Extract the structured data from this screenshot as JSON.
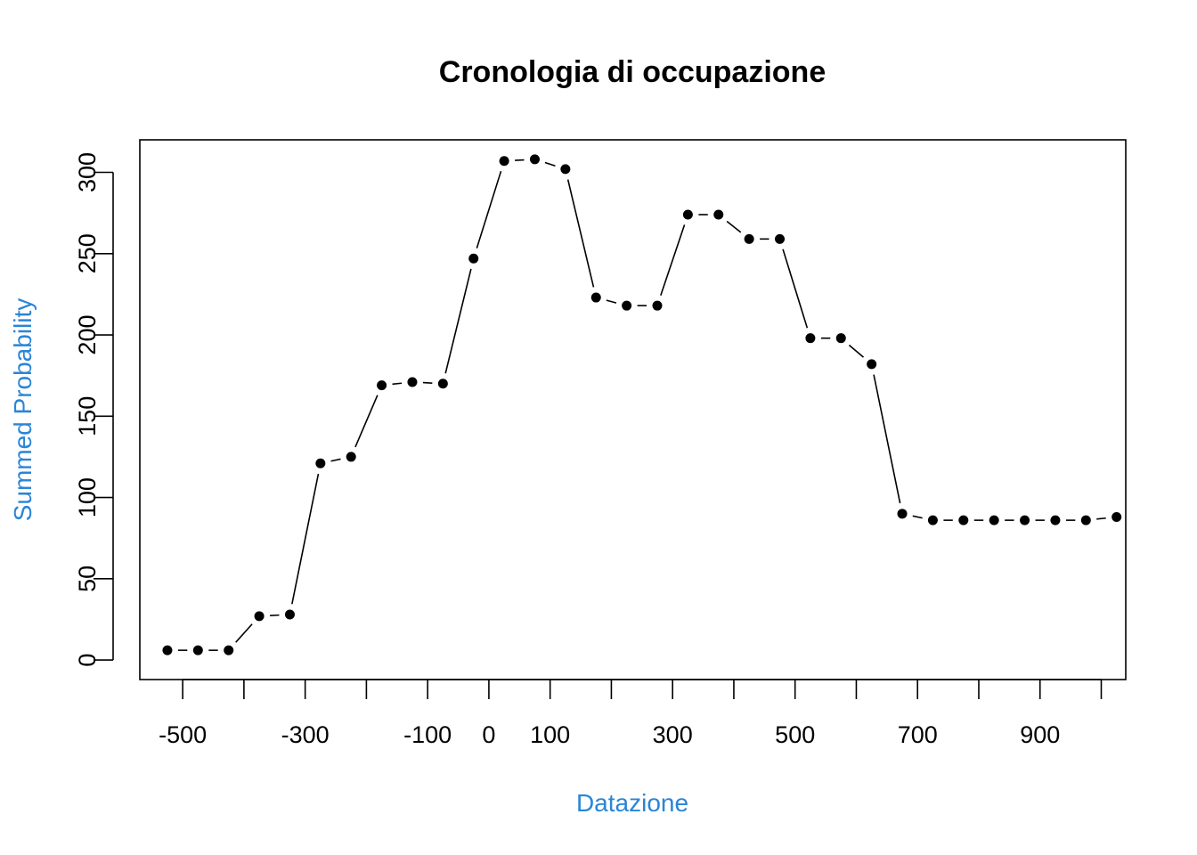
{
  "chart_data": {
    "type": "scatter",
    "title": "Cronologia di occupazione",
    "xlabel": "Datazione",
    "ylabel": "Summed Probability",
    "label_color": "#2a85d6",
    "x_tick_labels": [
      "-500",
      "-300",
      "-100",
      "0",
      "100",
      "300",
      "500",
      "700",
      "900"
    ],
    "x_tick_values": [
      -500,
      -300,
      -100,
      0,
      100,
      300,
      500,
      700,
      900
    ],
    "x_minor_ticks": [
      -400,
      -200,
      200,
      400,
      600,
      800,
      1000
    ],
    "y_ticks": [
      0,
      50,
      100,
      150,
      200,
      250,
      300
    ],
    "xlim": [
      -570,
      1040
    ],
    "ylim": [
      -12,
      320
    ],
    "grid": false,
    "series": [
      {
        "x": [
          -525,
          -475,
          -425,
          -375,
          -325,
          -275,
          -225,
          -175,
          -125,
          -75,
          -25,
          25,
          75,
          125,
          175,
          225,
          275,
          325,
          375,
          425,
          475,
          525,
          575,
          625,
          675,
          725,
          775,
          825,
          875,
          925,
          975,
          1025
        ],
        "values": [
          6,
          6,
          6,
          27,
          28,
          121,
          125,
          169,
          171,
          170,
          247,
          307,
          308,
          302,
          223,
          218,
          218,
          274,
          274,
          259,
          259,
          198,
          198,
          182,
          90,
          86,
          86,
          86,
          86,
          86,
          86,
          88
        ]
      }
    ]
  }
}
